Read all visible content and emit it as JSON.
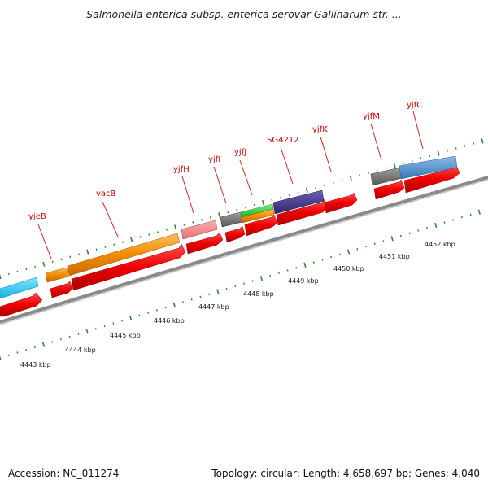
{
  "header": {
    "title": "Salmonella enterica subsp. enterica serovar Gallinarum str. ..."
  },
  "footer": {
    "accession": "Accession: NC_011274",
    "topology": "Topology: circular; Length: 4,658,697 bp; Genes: 4,040"
  },
  "colors": {
    "backbone": "#808080",
    "cds_arrow": "#ff0000",
    "label": "#cc0000",
    "tick": "#2e8b2e",
    "tick_label": "#222222"
  },
  "scale_labels": [
    "4443 kbp",
    "4444 kbp",
    "4445 kbp",
    "4446 kbp",
    "4447 kbp",
    "4448 kbp",
    "4449 kbp",
    "4450 kbp",
    "4451 kbp",
    "4452 kbp"
  ],
  "genes": [
    {
      "name": "yjeB"
    },
    {
      "name": "vacB"
    },
    {
      "name": "yjfH"
    },
    {
      "name": "yjfI"
    },
    {
      "name": "yjfJ"
    },
    {
      "name": "SG4212"
    },
    {
      "name": "yjfK"
    },
    {
      "name": "yjfM"
    },
    {
      "name": "yjfC"
    }
  ]
}
